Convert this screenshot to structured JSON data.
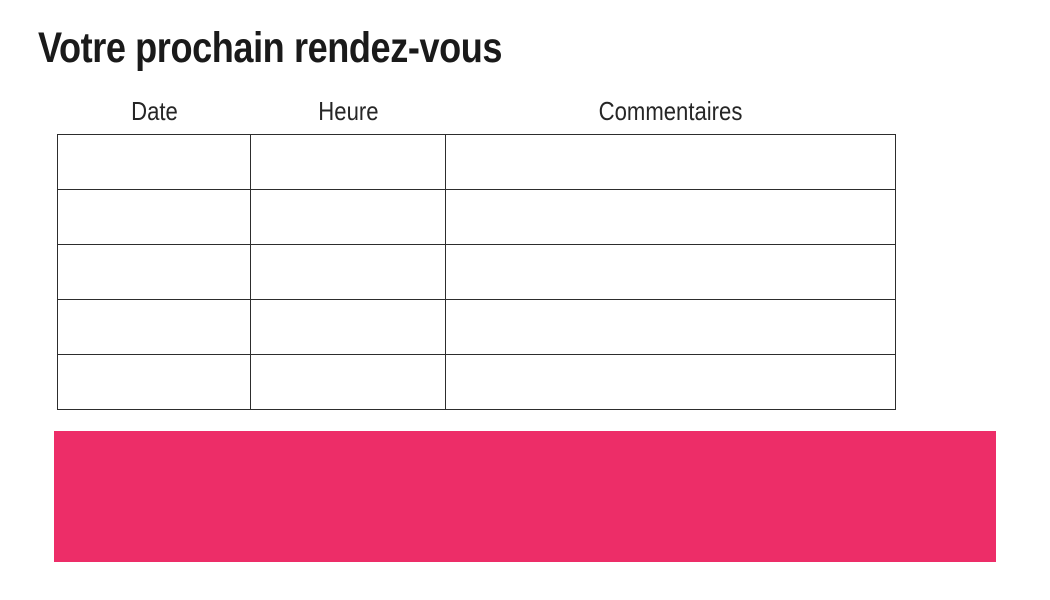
{
  "page": {
    "title": "Votre prochain rendez-vous"
  },
  "table": {
    "columns": [
      {
        "label": "Date"
      },
      {
        "label": "Heure"
      },
      {
        "label": "Commentaires"
      }
    ],
    "rows": [
      [
        "",
        "",
        ""
      ],
      [
        "",
        "",
        ""
      ],
      [
        "",
        "",
        ""
      ],
      [
        "",
        "",
        ""
      ],
      [
        "",
        "",
        ""
      ]
    ]
  },
  "colors": {
    "accent_pink": "#ED2D68",
    "table_border": "#2D2D2D",
    "text": "#1A1A1A"
  }
}
